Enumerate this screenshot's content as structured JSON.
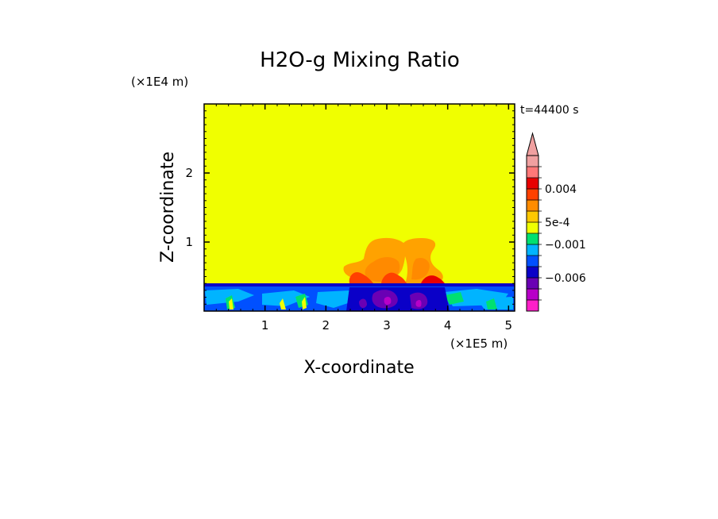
{
  "chart_data": {
    "type": "heatmap",
    "title": "H2O-g Mixing Ratio",
    "xlabel": "X-coordinate",
    "ylabel": "Z-coordinate",
    "x_unit": "(×1E5 m)",
    "y_unit": "(×1E4 m)",
    "time_label": "t=44400 s",
    "xlim": [
      0,
      5.1
    ],
    "ylim": [
      0,
      3
    ],
    "x_ticks": [
      1,
      2,
      3,
      4,
      5
    ],
    "y_ticks": [
      1,
      2
    ],
    "colorbar": {
      "labels": [
        {
          "text": "0.004",
          "value": 0.004
        },
        {
          "text": "5e-4",
          "value": 0.0005
        },
        {
          "text": "−0.001",
          "value": -0.001
        },
        {
          "text": "−0.006",
          "value": -0.006
        }
      ],
      "colors": [
        "#ff1fc8",
        "#b800c8",
        "#6a00b4",
        "#0a00c8",
        "#0050ff",
        "#00b4ff",
        "#00e070",
        "#f0ff00",
        "#ffc800",
        "#ff8c00",
        "#ff4000",
        "#e80000",
        "#ff7878",
        "#f0a0a0"
      ],
      "extend": "max"
    },
    "background_color": "#f0ff00",
    "regions": [
      {
        "name": "boundary-layer",
        "x_range": [
          0,
          5.1
        ],
        "z_range": [
          0,
          0.38
        ],
        "level": "negative (blue/cyan)"
      },
      {
        "name": "plume-left",
        "x_center": 3.0,
        "z_top": 0.95,
        "level": "positive (orange)"
      },
      {
        "name": "plume-right",
        "x_center": 3.55,
        "z_top": 1.0,
        "level": "positive (orange)"
      }
    ]
  }
}
